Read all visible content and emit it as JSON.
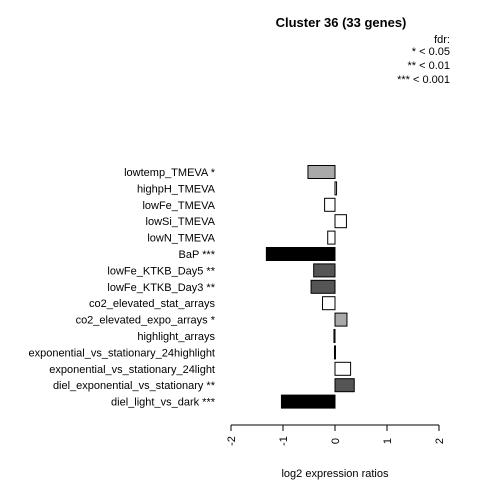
{
  "chart_data": {
    "type": "bar",
    "orientation": "horizontal",
    "title": "Cluster 36 (33 genes)",
    "xlabel": "log2 expression ratios",
    "ylabel": "",
    "xlim": [
      -2,
      2
    ],
    "x_ticks": [
      "-2",
      "-1",
      "0",
      "1",
      "2"
    ],
    "legend": {
      "title": "fdr:",
      "entries": [
        "* < 0.05",
        "** < 0.01",
        "*** < 0.001"
      ]
    },
    "categories": [
      "lowtemp_TMEVA *",
      "highpH_TMEVA",
      "lowFe_TMEVA",
      "lowSi_TMEVA",
      "lowN_TMEVA",
      "BaP ***",
      "lowFe_KTKB_Day5 **",
      "lowFe_KTKB_Day3 **",
      "co2_elevated_stat_arrays",
      "co2_elevated_expo_arrays *",
      "highlight_arrays",
      "exponential_vs_stationary_24highlight",
      "exponential_vs_stationary_24light",
      "diel_exponential_vs_stationary **",
      "diel_light_vs_dark ***"
    ],
    "values": [
      -0.52,
      0.03,
      -0.2,
      0.22,
      -0.14,
      -1.32,
      -0.41,
      -0.46,
      -0.24,
      0.23,
      -0.02,
      -0.01,
      0.3,
      0.37,
      -1.03
    ],
    "colors": [
      "#a9a9a9",
      "#ffffff",
      "#ffffff",
      "#ffffff",
      "#ffffff",
      "#000000",
      "#555555",
      "#555555",
      "#ffffff",
      "#a9a9a9",
      "#ffffff",
      "#ffffff",
      "#ffffff",
      "#555555",
      "#000000"
    ]
  }
}
